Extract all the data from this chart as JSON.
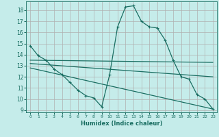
{
  "xlabel": "Humidex (Indice chaleur)",
  "bg_color": "#c5ecea",
  "grid_color": "#b0b0b0",
  "line_color": "#1a6e62",
  "xlim": [
    -0.5,
    23.5
  ],
  "ylim": [
    8.8,
    18.8
  ],
  "xticks": [
    0,
    1,
    2,
    3,
    4,
    5,
    6,
    7,
    8,
    9,
    10,
    11,
    12,
    13,
    14,
    15,
    16,
    17,
    18,
    19,
    20,
    21,
    22,
    23
  ],
  "yticks": [
    9,
    10,
    11,
    12,
    13,
    14,
    15,
    16,
    17,
    18
  ],
  "series1_x": [
    0,
    1,
    2,
    3,
    4,
    5,
    6,
    7,
    8,
    9,
    10,
    11,
    12,
    13,
    14,
    15,
    16,
    17,
    18,
    19,
    20,
    21,
    22,
    23
  ],
  "series1_y": [
    14.8,
    13.9,
    13.5,
    12.7,
    12.2,
    11.5,
    10.8,
    10.3,
    10.1,
    9.3,
    12.2,
    16.5,
    18.3,
    18.4,
    17.0,
    16.5,
    16.4,
    15.3,
    13.5,
    12.0,
    11.8,
    10.4,
    10.0,
    9.1
  ],
  "line1_x": [
    0,
    23
  ],
  "line1_y": [
    13.5,
    13.3
  ],
  "line2_x": [
    0,
    23
  ],
  "line2_y": [
    13.2,
    12.0
  ],
  "line3_x": [
    0,
    23
  ],
  "line3_y": [
    12.8,
    9.1
  ]
}
